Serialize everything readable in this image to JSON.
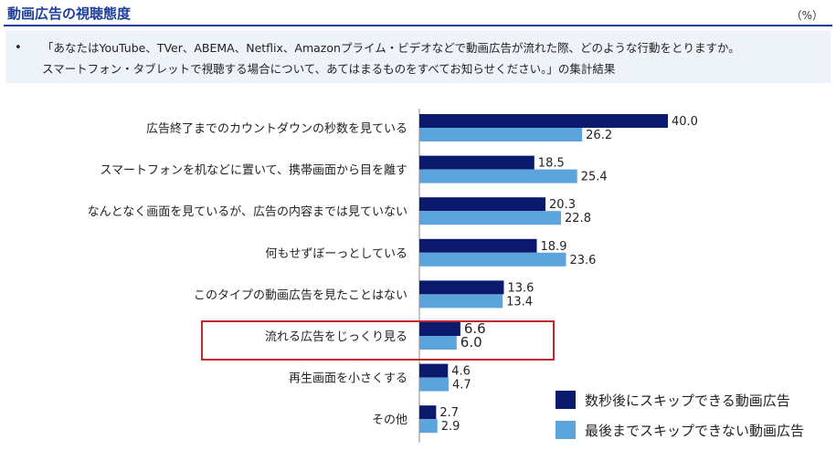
{
  "header": {
    "title": "動画広告の視聴態度",
    "unit": "（%）"
  },
  "question": {
    "bullet": "•",
    "line1": "「あなたはYouTube、TVer、ABEMA、Netflix、Amazonプライム・ビデオなどで動画広告が流れた際、どのような行動をとりますか。",
    "line2": "スマートフォン・タブレットで視聴する場合について、あてはまるものをすべてお知らせください。」の集計結果"
  },
  "colors": {
    "series1": "#0c1a6e",
    "series2": "#5ba4dc",
    "highlight": "#c0282d"
  },
  "chart_data": {
    "type": "bar",
    "orientation": "horizontal",
    "categories": [
      "広告終了までのカウントダウンの秒数を見ている",
      "スマートフォンを机などに置いて、携帯画面から目を離す",
      "なんとなく画面を見ているが、広告の内容までは見ていない",
      "何もせずぼーっとしている",
      "このタイプの動画広告を見たことはない",
      "流れる広告をじっくり見る",
      "再生画面を小さくする",
      "その他"
    ],
    "series": [
      {
        "name": "数秒後にスキップできる動画広告",
        "values": [
          40.0,
          18.5,
          20.3,
          18.9,
          13.6,
          6.6,
          4.6,
          2.7
        ]
      },
      {
        "name": "最後までスキップできない動画広告",
        "values": [
          26.2,
          25.4,
          22.8,
          23.6,
          13.4,
          6.0,
          4.7,
          2.9
        ]
      }
    ],
    "value_labels": [
      [
        "40.0",
        "18.5",
        "20.3",
        "18.9",
        "13.6",
        "6.6",
        "4.6",
        "2.7"
      ],
      [
        "26.2",
        "25.4",
        "22.8",
        "23.6",
        "13.4",
        "6.0",
        "4.7",
        "2.9"
      ]
    ],
    "highlighted_category": "流れる広告をじっくり見る",
    "xlim": [
      0,
      45
    ],
    "grid": false,
    "legend_position": "bottom-right"
  }
}
